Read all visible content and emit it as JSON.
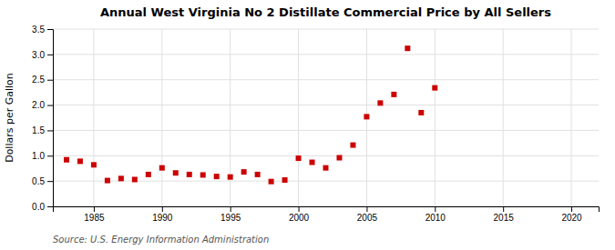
{
  "chart_data": {
    "type": "scatter",
    "title": "Annual West Virginia No 2 Distillate Commercial Price by All Sellers",
    "ylabel": "Dollars per Gallon",
    "source": "Source: U.S. Energy Information Administration",
    "x": [
      1983,
      1984,
      1985,
      1986,
      1987,
      1988,
      1989,
      1990,
      1991,
      1992,
      1993,
      1994,
      1995,
      1996,
      1997,
      1998,
      1999,
      2000,
      2001,
      2002,
      2003,
      2004,
      2005,
      2006,
      2007,
      2008,
      2009,
      2010
    ],
    "values": [
      0.92,
      0.89,
      0.82,
      0.51,
      0.55,
      0.53,
      0.63,
      0.76,
      0.66,
      0.63,
      0.62,
      0.59,
      0.58,
      0.68,
      0.63,
      0.49,
      0.52,
      0.95,
      0.87,
      0.76,
      0.96,
      1.21,
      1.77,
      2.04,
      2.21,
      3.12,
      1.85,
      2.34
    ],
    "color": "#cc0000",
    "marker": "square",
    "xlim": [
      1982,
      2022
    ],
    "ylim": [
      0.0,
      3.5
    ],
    "xticks": [
      1985,
      1990,
      1995,
      2000,
      2005,
      2010,
      2015,
      2020
    ],
    "yticks": [
      {
        "value": 0.0,
        "label": "0.0"
      },
      0.5,
      {
        "value": 1.0,
        "label": "1.0"
      },
      1.5,
      {
        "value": 2.0,
        "label": "2.0"
      },
      2.5,
      {
        "value": 3.0,
        "label": "3.0"
      },
      3.5
    ],
    "grid": true
  }
}
